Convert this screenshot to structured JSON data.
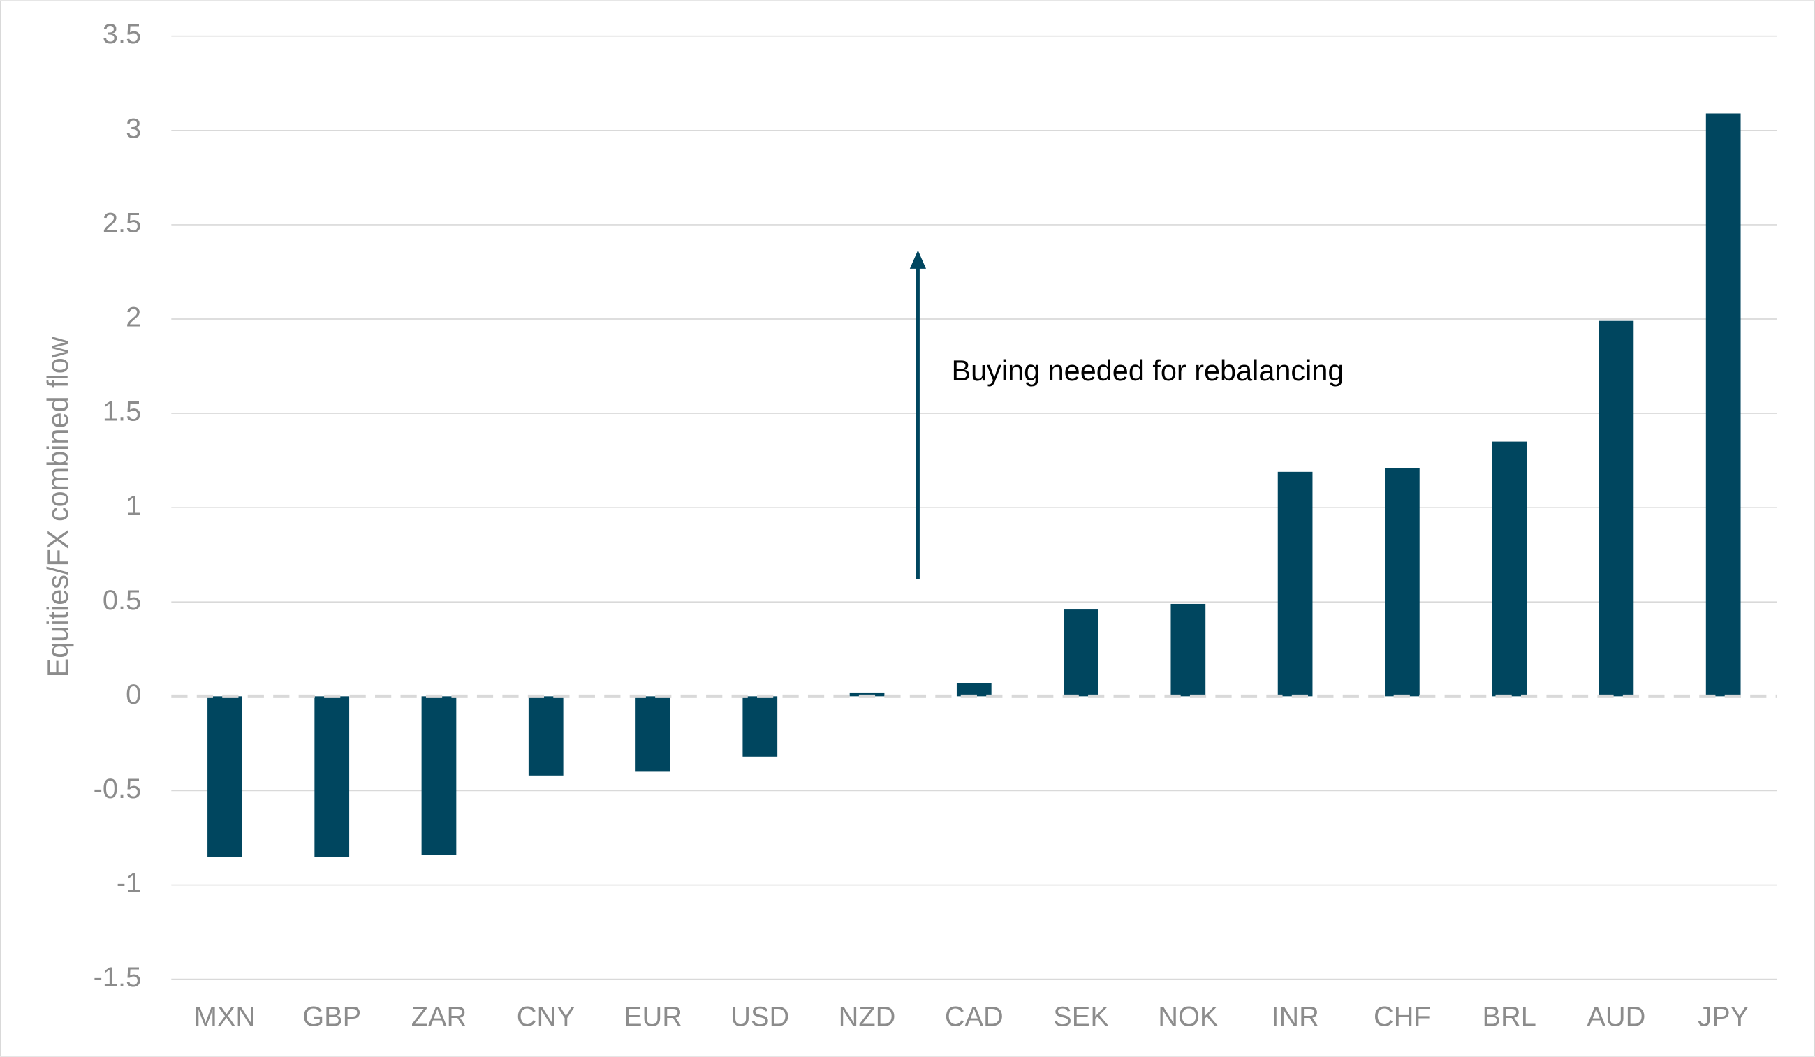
{
  "chart_data": {
    "type": "bar",
    "y_label": "Equities/FX combined flow",
    "annotation": "Buying needed for rebalancing",
    "categories": [
      "MXN",
      "GBP",
      "ZAR",
      "CNY",
      "EUR",
      "USD",
      "NZD",
      "CAD",
      "SEK",
      "NOK",
      "INR",
      "CHF",
      "BRL",
      "AUD",
      "JPY"
    ],
    "values": [
      -0.85,
      -0.85,
      -0.84,
      -0.42,
      -0.4,
      -0.32,
      0.02,
      0.07,
      0.46,
      0.49,
      1.19,
      1.21,
      1.35,
      1.99,
      3.09
    ],
    "color": "#00465f",
    "ylim": [
      -1.5,
      3.5
    ],
    "yticks": [
      -1.5,
      -1,
      -0.5,
      0,
      0.5,
      1,
      1.5,
      2,
      2.5,
      3,
      3.5
    ],
    "grid": true
  }
}
